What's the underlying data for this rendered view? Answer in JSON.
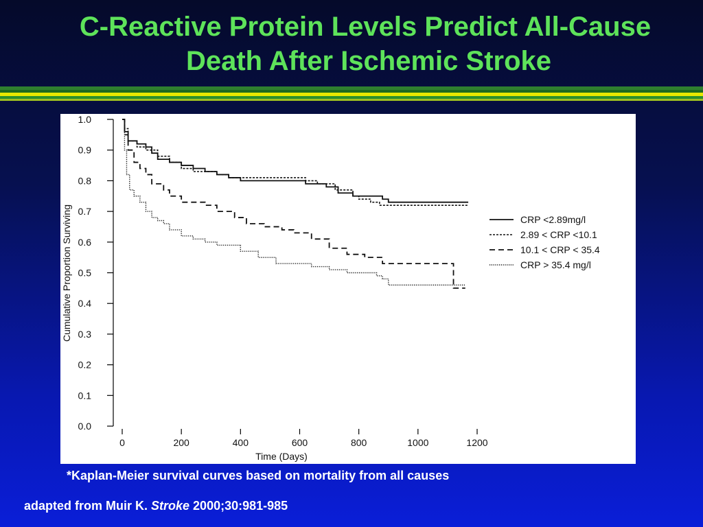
{
  "slide": {
    "title_line1": "C-Reactive Protein Levels Predict All-Cause",
    "title_line2": "Death After Ischemic Stroke",
    "footnote": "*Kaplan-Meier survival curves based on mortality from all causes",
    "source_prefix": "adapted from Muir K. ",
    "source_journal": "Stroke",
    "source_suffix": " 2000;30:981-985",
    "colors": {
      "title": "#5ee35a",
      "background_top": "#050a2a",
      "background_bottom": "#0a1ed8",
      "stripe_yellow": "#e8e800",
      "stripe_green": "#2f7f2f"
    }
  },
  "chart_data": {
    "type": "line",
    "xlabel": "Time (Days)",
    "ylabel": "Cumulative Proportion Surviving",
    "xlim": [
      0,
      1200
    ],
    "ylim": [
      0.0,
      1.0
    ],
    "x_ticks": [
      "0",
      "200",
      "400",
      "600",
      "800",
      "1000",
      "1200"
    ],
    "y_ticks": [
      "0.0",
      "0.1",
      "0.2",
      "0.3",
      "0.4",
      "0.5",
      "0.6",
      "0.7",
      "0.8",
      "0.9",
      "1.0"
    ],
    "grid": false,
    "legend_position": "right",
    "series": [
      {
        "name": "CRP <2.89mg/l",
        "dash": "solid",
        "x": [
          0,
          8,
          20,
          50,
          80,
          100,
          120,
          160,
          200,
          240,
          260,
          280,
          320,
          360,
          400,
          600,
          620,
          690,
          730,
          780,
          800,
          830,
          880,
          900,
          1000,
          1100,
          1170
        ],
        "y": [
          1.0,
          0.96,
          0.93,
          0.92,
          0.91,
          0.89,
          0.87,
          0.86,
          0.85,
          0.84,
          0.84,
          0.83,
          0.82,
          0.81,
          0.8,
          0.8,
          0.79,
          0.78,
          0.76,
          0.75,
          0.75,
          0.75,
          0.74,
          0.73,
          0.73,
          0.73,
          0.73
        ]
      },
      {
        "name": "2.89 < CRP <10.1",
        "dash": "short",
        "x": [
          0,
          8,
          20,
          50,
          80,
          120,
          160,
          200,
          240,
          280,
          320,
          360,
          400,
          560,
          620,
          660,
          720,
          780,
          800,
          840,
          870,
          1000,
          1100,
          1170
        ],
        "y": [
          1.0,
          0.97,
          0.93,
          0.91,
          0.9,
          0.88,
          0.86,
          0.84,
          0.83,
          0.83,
          0.82,
          0.81,
          0.81,
          0.81,
          0.8,
          0.79,
          0.77,
          0.75,
          0.74,
          0.73,
          0.72,
          0.72,
          0.72,
          0.72
        ]
      },
      {
        "name": "10.1 < CRP < 35.4",
        "dash": "long",
        "x": [
          0,
          8,
          20,
          40,
          60,
          80,
          100,
          140,
          160,
          200,
          240,
          280,
          320,
          380,
          420,
          480,
          540,
          580,
          640,
          700,
          760,
          820,
          880,
          920,
          1000,
          1100,
          1120,
          1145,
          1160
        ],
        "y": [
          1.0,
          0.95,
          0.9,
          0.86,
          0.84,
          0.82,
          0.79,
          0.77,
          0.75,
          0.73,
          0.73,
          0.72,
          0.7,
          0.68,
          0.66,
          0.65,
          0.64,
          0.63,
          0.61,
          0.58,
          0.56,
          0.55,
          0.53,
          0.53,
          0.53,
          0.53,
          0.45,
          0.45,
          0.45
        ]
      },
      {
        "name": "CRP > 35.4 mg/l",
        "dash": "dotted",
        "x": [
          0,
          8,
          15,
          25,
          40,
          60,
          80,
          100,
          120,
          140,
          160,
          200,
          240,
          280,
          320,
          360,
          400,
          460,
          520,
          580,
          640,
          700,
          760,
          820,
          860,
          880,
          900,
          1000,
          1100,
          1160
        ],
        "y": [
          1.0,
          0.9,
          0.82,
          0.77,
          0.75,
          0.73,
          0.7,
          0.68,
          0.67,
          0.66,
          0.64,
          0.62,
          0.61,
          0.6,
          0.59,
          0.59,
          0.57,
          0.55,
          0.53,
          0.53,
          0.52,
          0.51,
          0.5,
          0.5,
          0.49,
          0.48,
          0.46,
          0.46,
          0.46,
          0.46
        ]
      }
    ]
  }
}
